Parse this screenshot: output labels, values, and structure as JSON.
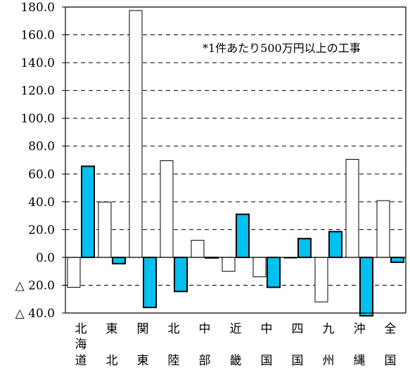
{
  "chart_data": {
    "type": "bar",
    "title": "",
    "xlabel": "",
    "ylabel": "",
    "annotation": "*1件あたり500万円以上の工事",
    "ylim": [
      -40,
      180
    ],
    "yticks": [
      -40,
      -20,
      0,
      20,
      40,
      60,
      80,
      100,
      120,
      140,
      160,
      180
    ],
    "ytick_labels": [
      "△ 40.0",
      "△ 20.0",
      "0.0",
      "20.0",
      "40.0",
      "60.0",
      "80.0",
      "100.0",
      "120.0",
      "140.0",
      "160.0",
      "180.0"
    ],
    "grid": "horizontal-dashed",
    "categories": [
      "北海道",
      "東北",
      "関東",
      "北陸",
      "中部",
      "近畿",
      "中国",
      "四国",
      "九州",
      "沖縄",
      "全国"
    ],
    "category_lines": [
      [
        "北",
        "海",
        "道"
      ],
      [
        "東",
        "",
        "北"
      ],
      [
        "関",
        "",
        "東"
      ],
      [
        "北",
        "",
        "陸"
      ],
      [
        "中",
        "",
        "部"
      ],
      [
        "近",
        "",
        "畿"
      ],
      [
        "中",
        "",
        "国"
      ],
      [
        "四",
        "",
        "国"
      ],
      [
        "九",
        "",
        "州"
      ],
      [
        "沖",
        "",
        "縄"
      ],
      [
        "全",
        "",
        "国"
      ]
    ],
    "series": [
      {
        "values": [
          -21.5,
          39.8,
          177.5,
          69.5,
          12.3,
          -10.0,
          -14.0,
          -0.5,
          -32.0,
          70.5,
          40.8
        ],
        "color": "#ffffff"
      },
      {
        "values": [
          65.5,
          -4.5,
          -36.0,
          -24.5,
          0.0,
          31.0,
          -21.5,
          13.5,
          18.5,
          -42.0,
          -3.5
        ],
        "color": "#00c0f0"
      }
    ]
  }
}
